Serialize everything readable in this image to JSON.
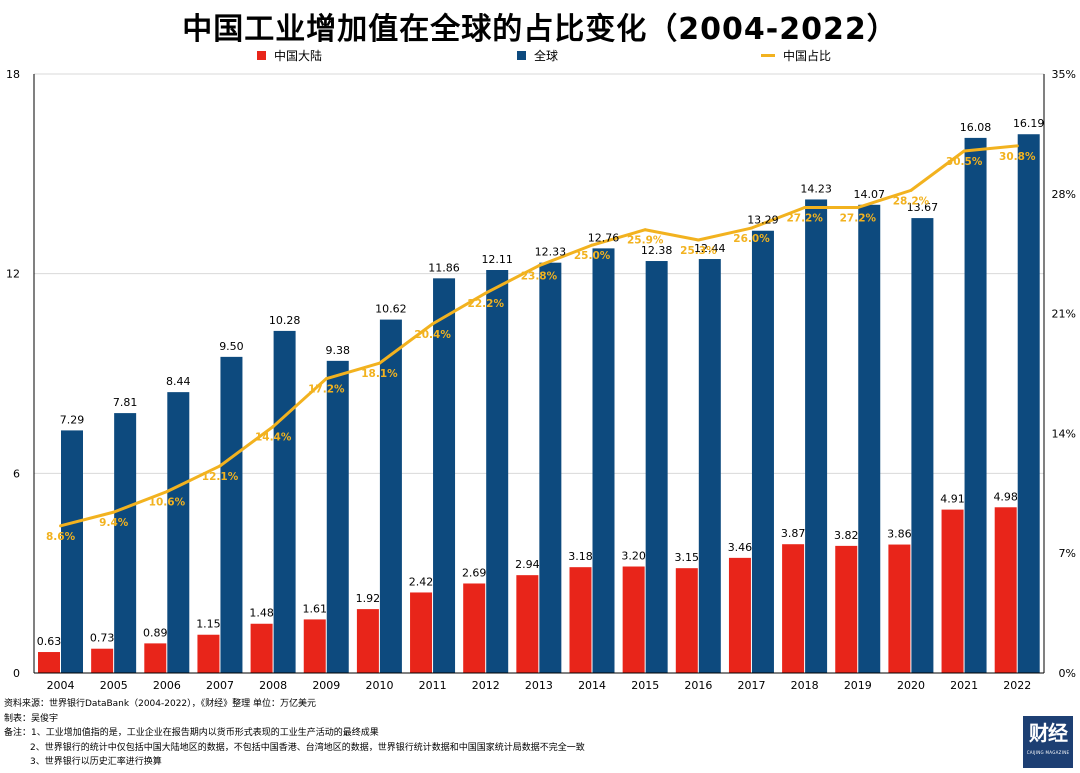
{
  "title": "中国工业增加值在全球的占比变化（2004-2022）",
  "legend": {
    "china": "中国大陆",
    "world": "全球",
    "share": "中国占比"
  },
  "colors": {
    "china": "#e8251a",
    "world": "#0d4a7e",
    "share": "#f2b21f",
    "share_label": "#f2b21f"
  },
  "chart_data": {
    "type": "bar",
    "categories": [
      "2004",
      "2005",
      "2006",
      "2007",
      "2008",
      "2009",
      "2010",
      "2011",
      "2012",
      "2013",
      "2014",
      "2015",
      "2016",
      "2017",
      "2018",
      "2019",
      "2020",
      "2021",
      "2022"
    ],
    "series": [
      {
        "name": "中国大陆",
        "type": "bar",
        "axis": "left",
        "values": [
          0.63,
          0.73,
          0.89,
          1.15,
          1.48,
          1.61,
          1.92,
          2.42,
          2.69,
          2.94,
          3.18,
          3.2,
          3.15,
          3.46,
          3.87,
          3.82,
          3.86,
          4.91,
          4.98
        ],
        "labels": [
          "0.63",
          "0.73",
          "0.89",
          "1.15",
          "1.48",
          "1.61",
          "1.92",
          "2.42",
          "2.69",
          "2.94",
          "3.18",
          "3.20",
          "3.15",
          "3.46",
          "3.87",
          "3.82",
          "3.86",
          "4.91",
          "4.98"
        ]
      },
      {
        "name": "全球",
        "type": "bar",
        "axis": "left",
        "values": [
          7.29,
          7.81,
          8.44,
          9.5,
          10.28,
          9.38,
          10.62,
          11.86,
          12.11,
          12.33,
          12.76,
          12.38,
          12.44,
          13.29,
          14.23,
          14.07,
          13.67,
          16.08,
          16.19
        ],
        "labels": [
          "7.29",
          "7.81",
          "8.44",
          "9.50",
          "10.28",
          "9.38",
          "10.62",
          "11.86",
          "12.11",
          "12.33",
          "12.76",
          "12.38",
          "12.44",
          "13.29",
          "14.23",
          "14.07",
          "13.67",
          "16.08",
          "16.19"
        ]
      },
      {
        "name": "中国占比",
        "type": "line",
        "axis": "right",
        "values": [
          8.6,
          9.4,
          10.6,
          12.1,
          14.4,
          17.2,
          18.1,
          20.4,
          22.2,
          23.8,
          25.0,
          25.9,
          25.3,
          26.0,
          27.2,
          27.2,
          28.2,
          30.5,
          30.8
        ],
        "labels": [
          "8.6%",
          "9.4%",
          "10.6%",
          "12.1%",
          "14.4%",
          "17.2%",
          "18.1%",
          "20.4%",
          "22.2%",
          "23.8%",
          "25.0%",
          "25.9%",
          "25.3%",
          "26.0%",
          "27.2%",
          "27.2%",
          "28.2%",
          "30.5%",
          "30.8%"
        ]
      }
    ],
    "y_left": {
      "ylim": [
        0,
        18
      ],
      "ticks": [
        "0",
        "6",
        "12",
        "18"
      ],
      "tick_values": [
        0,
        6,
        12,
        18
      ]
    },
    "y_right": {
      "ylim": [
        0,
        35
      ],
      "ticks": [
        "0%",
        "7%",
        "14%",
        "21%",
        "28%",
        "35%"
      ],
      "tick_values": [
        0,
        7,
        14,
        21,
        28,
        35
      ]
    },
    "grid": true,
    "legend_position": "top"
  },
  "footer": {
    "source": "资料来源：世界银行DataBank（2004-2022），《财经》整理      单位：万亿美元",
    "maker": "制表：吴俊宇",
    "note1": "备注：1、工业增加值指的是，工业企业在报告期内以货币形式表现的工业生产活动的最终成果",
    "note2": "2、世界银行的统计中仅包括中国大陆地区的数据，不包括中国香港、台湾地区的数据，世界银行统计数据和中国国家统计局数据不完全一致",
    "note3": "3、世界银行以历史汇率进行换算"
  },
  "logo": {
    "text": "财经"
  }
}
